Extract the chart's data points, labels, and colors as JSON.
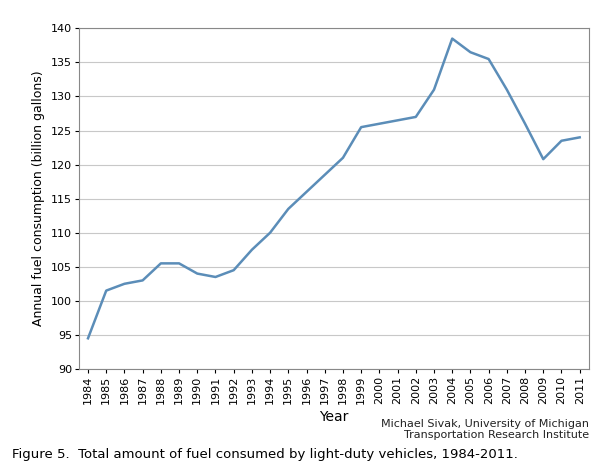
{
  "years": [
    1984,
    1985,
    1986,
    1987,
    1988,
    1989,
    1990,
    1991,
    1992,
    1993,
    1994,
    1995,
    1996,
    1997,
    1998,
    1999,
    2000,
    2001,
    2002,
    2003,
    2004,
    2005,
    2006,
    2007,
    2008,
    2009,
    2010,
    2011
  ],
  "values": [
    94.5,
    101.5,
    102.5,
    103.0,
    105.5,
    105.5,
    104.0,
    103.5,
    104.5,
    107.5,
    110.0,
    113.5,
    116.0,
    118.5,
    121.0,
    125.5,
    126.0,
    126.5,
    127.0,
    131.0,
    138.5,
    136.5,
    135.5,
    131.0,
    126.0,
    120.8,
    123.5,
    124.0
  ],
  "line_color": "#5B8DB8",
  "line_width": 1.8,
  "ylabel": "Annual fuel consumption (billion gallons)",
  "xlabel": "Year",
  "ylim": [
    90,
    140
  ],
  "yticks": [
    90,
    95,
    100,
    105,
    110,
    115,
    120,
    125,
    130,
    135,
    140
  ],
  "grid_color": "#c8c8c8",
  "background_color": "#ffffff",
  "caption": "Figure 5.  Total amount of fuel consumed by light-duty vehicles, 1984-2011.",
  "attribution_line1": "Michael Sivak, University of Michigan",
  "attribution_line2": "Transportation Research Institute",
  "ylabel_fontsize": 9,
  "xlabel_fontsize": 10,
  "tick_fontsize": 8,
  "caption_fontsize": 9.5,
  "attribution_fontsize": 8
}
